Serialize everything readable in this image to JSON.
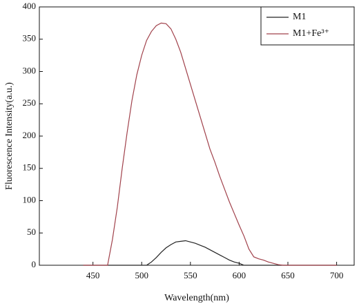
{
  "chart_data": {
    "type": "line",
    "xlabel": "Wavelength(nm)",
    "ylabel": "Fluorescence Intensity(a.u.)",
    "x": [
      440,
      445,
      450,
      455,
      460,
      465,
      470,
      475,
      480,
      485,
      490,
      495,
      500,
      505,
      510,
      515,
      520,
      525,
      530,
      535,
      540,
      545,
      550,
      555,
      560,
      565,
      570,
      575,
      580,
      585,
      590,
      595,
      600,
      605,
      610,
      615,
      620,
      625,
      630,
      635,
      640,
      645,
      650,
      655,
      660,
      665,
      670,
      675,
      680,
      685,
      690,
      695,
      700
    ],
    "series": [
      {
        "name": "M1",
        "color": "#222222",
        "values": [
          0,
          0,
          0,
          0,
          0,
          0,
          0,
          0,
          0,
          0,
          0,
          0,
          0,
          0,
          5,
          12,
          20,
          27,
          32,
          36,
          37,
          38,
          36,
          34,
          31,
          28,
          24,
          20,
          16,
          12,
          8,
          5,
          3,
          0,
          0,
          0,
          0,
          0,
          0,
          0,
          0,
          0,
          0,
          0,
          0,
          0,
          0,
          0,
          0,
          0,
          0,
          0,
          0
        ]
      },
      {
        "name": "M1+Fe³⁺",
        "color": "#a0404a",
        "values": [
          0,
          0,
          0,
          0,
          0,
          0,
          40,
          90,
          150,
          205,
          255,
          295,
          325,
          348,
          362,
          371,
          375,
          374,
          366,
          350,
          330,
          305,
          280,
          255,
          230,
          205,
          180,
          160,
          138,
          118,
          98,
          80,
          62,
          45,
          25,
          13,
          10,
          8,
          5,
          3,
          1,
          0,
          0,
          0,
          0,
          0,
          0,
          0,
          0,
          0,
          0,
          0,
          0
        ]
      }
    ],
    "xlim": [
      395,
      718
    ],
    "xticks": [
      450,
      500,
      550,
      600,
      650,
      700
    ],
    "ylim": [
      0,
      400
    ],
    "yticks": [
      0,
      50,
      100,
      150,
      200,
      250,
      300,
      350,
      400
    ],
    "legend": "upper right"
  }
}
